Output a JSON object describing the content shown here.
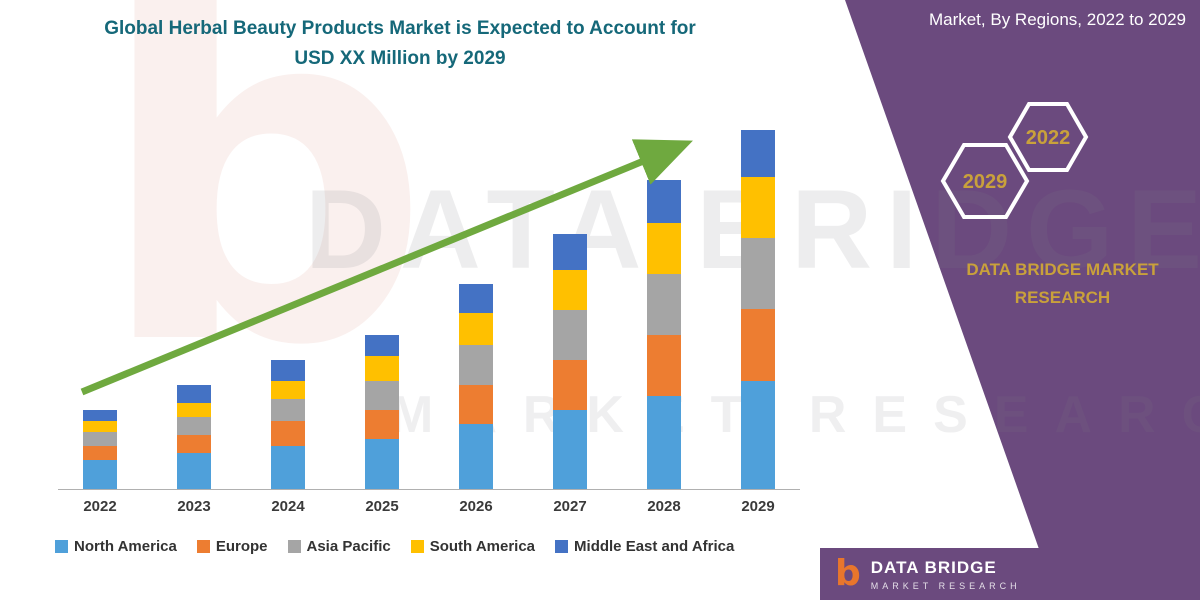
{
  "header": {
    "title_line1": "Global Herbal Beauty Products Market is Expected to Account for",
    "title_line2": "USD XX Million by 2029",
    "title_color": "#156879"
  },
  "ribbon": {
    "color": "#6B4A7E",
    "top_text": "Market, By Regions, 2022 to 2029",
    "hexagons": [
      {
        "year": "2029"
      },
      {
        "year": "2022"
      }
    ],
    "brand_line1": "DATA BRIDGE MARKET",
    "brand_line2": "RESEARCH",
    "gold_color": "#C9A13B"
  },
  "watermark": {
    "logo_letter": "b",
    "text1": "DATA BRIDGE",
    "text2": "MARKET RESEARCH"
  },
  "footer": {
    "logo_letter": "b",
    "brand": "DATA BRIDGE",
    "sub": "MARKET RESEARCH",
    "band_color": "#6B4A7E"
  },
  "chart_data": {
    "type": "bar",
    "stacked": true,
    "title": "Global Herbal Beauty Products Market is Expected to Account for USD XX Million by 2029",
    "xlabel": "",
    "ylabel": "",
    "y_axis_visible": false,
    "grid": false,
    "legend_position": "bottom",
    "categories": [
      "2022",
      "2023",
      "2024",
      "2025",
      "2026",
      "2027",
      "2028",
      "2029"
    ],
    "series": [
      {
        "name": "North America",
        "color": "#4FA0DA",
        "values": [
          8,
          10,
          12,
          14,
          18,
          22,
          26,
          30
        ]
      },
      {
        "name": "Europe",
        "color": "#ED7D31",
        "values": [
          4,
          5,
          7,
          8,
          11,
          14,
          17,
          20
        ]
      },
      {
        "name": "Asia Pacific",
        "color": "#A5A5A5",
        "values": [
          4,
          5,
          6,
          8,
          11,
          14,
          17,
          20
        ]
      },
      {
        "name": "South America",
        "color": "#FFC000",
        "values": [
          3,
          4,
          5,
          7,
          9,
          11,
          14,
          17
        ]
      },
      {
        "name": "Middle East and Africa",
        "color": "#4472C4",
        "values": [
          3,
          5,
          6,
          6,
          8,
          10,
          12,
          13
        ]
      }
    ],
    "totals_note": "values are relative units estimated from bar heights; no numeric axis shown",
    "trend_arrow": true,
    "trend_arrow_color": "#6FA93F"
  }
}
